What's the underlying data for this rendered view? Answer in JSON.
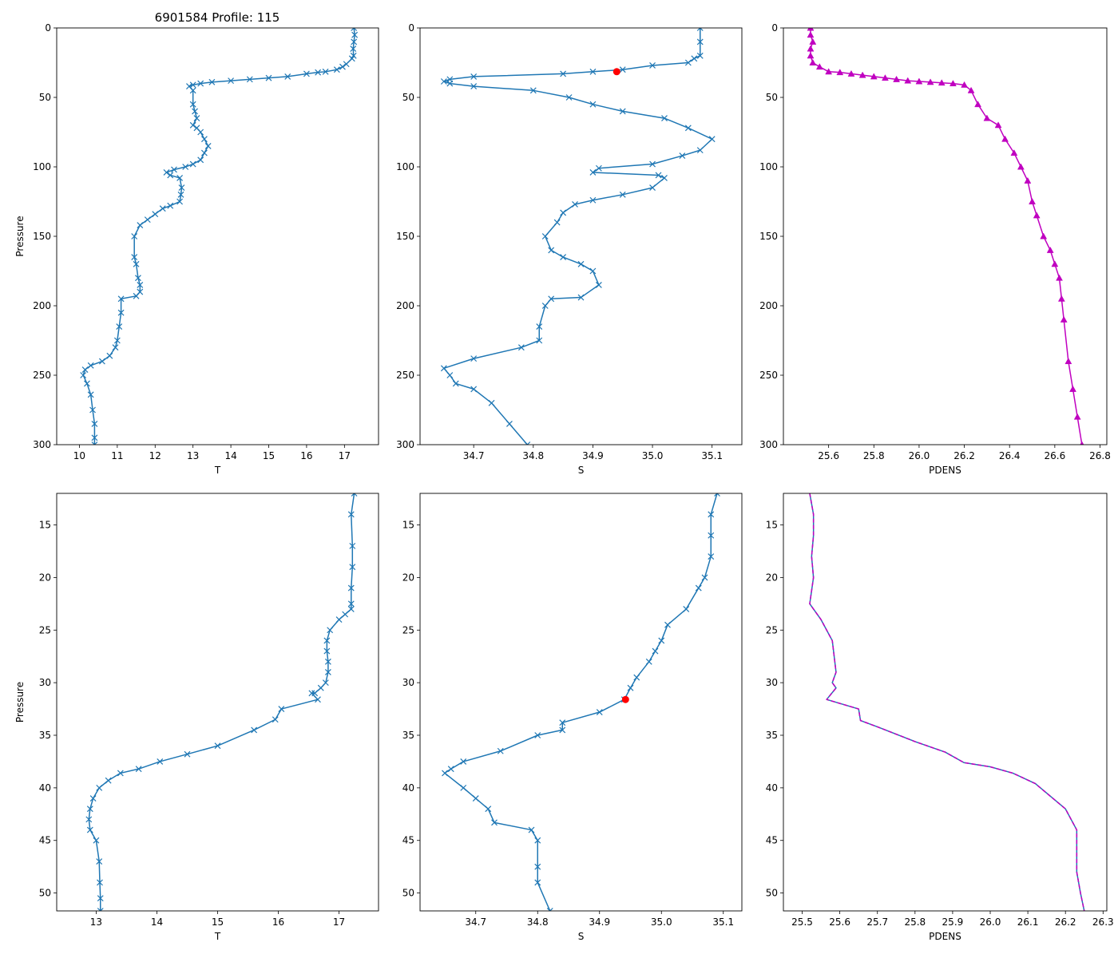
{
  "figure_title": "6901584 Profile: 115",
  "chart_data": [
    {
      "type": "line",
      "id": "top-T",
      "title": "6901584 Profile: 115",
      "xlabel": "T",
      "ylabel": "Pressure",
      "xlim": [
        9.4,
        17.9
      ],
      "ylim": [
        300,
        0
      ],
      "y_inverted": true,
      "xticks": [
        10,
        11,
        12,
        13,
        14,
        15,
        16,
        17
      ],
      "yticks": [
        0,
        50,
        100,
        150,
        200,
        250,
        300
      ],
      "series": [
        {
          "name": "T",
          "color": "#1f77b4",
          "marker": "x",
          "marker_color": "#1f77b4",
          "markevery": 1,
          "x": [
            17.25,
            17.27,
            17.25,
            17.23,
            17.24,
            17.2,
            17.05,
            16.95,
            16.8,
            16.5,
            16.3,
            16.0,
            15.5,
            15.0,
            14.5,
            14.0,
            13.5,
            13.2,
            13.0,
            12.9,
            13.0,
            13.0,
            13.05,
            13.1,
            13.0,
            13.1,
            13.2,
            13.3,
            13.4,
            13.3,
            13.2,
            13.0,
            12.8,
            12.5,
            12.3,
            12.4,
            12.65,
            12.7,
            12.68,
            12.65,
            12.4,
            12.2,
            12.0,
            11.8,
            11.6,
            11.45,
            11.45,
            11.5,
            11.55,
            11.6,
            11.6,
            11.5,
            11.1,
            11.1,
            11.05,
            11.0,
            10.95,
            10.8,
            10.6,
            10.3,
            10.15,
            10.1,
            10.2,
            10.3,
            10.35,
            10.4,
            10.4,
            10.4
          ],
          "y": [
            0,
            5,
            10,
            15,
            20,
            22,
            26,
            28,
            30,
            31.5,
            32,
            33,
            35,
            36,
            37,
            38,
            39,
            40,
            41,
            42,
            45,
            55,
            60,
            65,
            70,
            72,
            75,
            80,
            85,
            90,
            95,
            98,
            100,
            102,
            104,
            106,
            108,
            115,
            120,
            125,
            128,
            130,
            134,
            138,
            142,
            150,
            165,
            170,
            180,
            185,
            190,
            193,
            195,
            205,
            215,
            225,
            230,
            236,
            240,
            243,
            246,
            250,
            256,
            264,
            275,
            285,
            295,
            300
          ]
        }
      ]
    },
    {
      "type": "line",
      "id": "top-S",
      "title": "",
      "xlabel": "S",
      "ylabel": "",
      "xlim": [
        34.61,
        35.15
      ],
      "ylim": [
        300,
        0
      ],
      "y_inverted": true,
      "xticks": [
        34.7,
        34.8,
        34.9,
        35.0,
        35.1
      ],
      "yticks": [
        0,
        50,
        100,
        150,
        200,
        250,
        300
      ],
      "highlight": {
        "x": 34.94,
        "y": 31.5,
        "color": "#ff0000"
      },
      "series": [
        {
          "name": "S",
          "color": "#1f77b4",
          "marker": "x",
          "marker_color": "#1f77b4",
          "markevery": 1,
          "x": [
            35.08,
            35.08,
            35.08,
            35.07,
            35.06,
            35.0,
            34.95,
            34.9,
            34.85,
            34.7,
            34.66,
            34.65,
            34.66,
            34.7,
            34.8,
            34.86,
            34.9,
            34.95,
            35.02,
            35.06,
            35.1,
            35.08,
            35.05,
            35.0,
            34.91,
            34.9,
            35.01,
            35.02,
            35.0,
            34.95,
            34.9,
            34.87,
            34.85,
            34.84,
            34.82,
            34.83,
            34.85,
            34.88,
            34.9,
            34.91,
            34.88,
            34.83,
            34.82,
            34.81,
            34.81,
            34.78,
            34.7,
            34.65,
            34.66,
            34.67,
            34.7,
            34.73,
            34.76,
            34.79
          ],
          "y": [
            0,
            10,
            20,
            22,
            25,
            27,
            30,
            31.5,
            33,
            35,
            37,
            38.5,
            40,
            42,
            45,
            50,
            55,
            60,
            65,
            72,
            80,
            88,
            92,
            98,
            101,
            104,
            106,
            108,
            115,
            120,
            124,
            127,
            133,
            140,
            150,
            160,
            165,
            170,
            175,
            185,
            194,
            195,
            200,
            215,
            225,
            230,
            238,
            245,
            250,
            256,
            260,
            270,
            285,
            300
          ]
        }
      ]
    },
    {
      "type": "line",
      "id": "top-PDENS",
      "title": "",
      "xlabel": "PDENS",
      "ylabel": "",
      "xlim": [
        25.4,
        26.83
      ],
      "ylim": [
        300,
        0
      ],
      "y_inverted": true,
      "xticks": [
        25.6,
        25.8,
        26.0,
        26.2,
        26.4,
        26.6,
        26.8
      ],
      "yticks": [
        0,
        50,
        100,
        150,
        200,
        250,
        300
      ],
      "series": [
        {
          "name": "PDENS",
          "color": "#c000c0",
          "marker": "^",
          "marker_color": "#c000c0",
          "markevery": 1,
          "x": [
            25.52,
            25.52,
            25.53,
            25.52,
            25.52,
            25.53,
            25.56,
            25.6,
            25.65,
            25.7,
            25.75,
            25.8,
            25.85,
            25.9,
            25.95,
            26.0,
            26.05,
            26.1,
            26.15,
            26.2,
            26.23,
            26.26,
            26.3,
            26.35,
            26.38,
            26.42,
            26.45,
            26.48,
            26.5,
            26.52,
            26.55,
            26.58,
            26.6,
            26.62,
            26.63,
            26.64,
            26.66,
            26.68,
            26.7,
            26.72
          ],
          "y": [
            0,
            5,
            10,
            15,
            20,
            25,
            28,
            31.5,
            32,
            33,
            34,
            35,
            36,
            37,
            38,
            38.5,
            39,
            39.5,
            40,
            41,
            45,
            55,
            65,
            70,
            80,
            90,
            100,
            110,
            125,
            135,
            150,
            160,
            170,
            180,
            195,
            210,
            240,
            260,
            280,
            300
          ]
        }
      ]
    },
    {
      "type": "line",
      "id": "bottom-T",
      "title": "",
      "xlabel": "T",
      "ylabel": "Pressure",
      "xlim": [
        12.35,
        17.65
      ],
      "ylim": [
        51.7,
        12
      ],
      "y_inverted": true,
      "xticks": [
        13,
        14,
        15,
        16,
        17
      ],
      "yticks": [
        15,
        20,
        25,
        30,
        35,
        40,
        45,
        50
      ],
      "series": [
        {
          "name": "T",
          "color": "#1f77b4",
          "marker": "x",
          "marker_color": "#1f77b4",
          "markevery": 1,
          "x": [
            17.25,
            17.2,
            17.22,
            17.22,
            17.2,
            17.2,
            17.2,
            17.1,
            17.0,
            16.85,
            16.8,
            16.8,
            16.82,
            16.82,
            16.78,
            16.7,
            16.6,
            16.55,
            16.65,
            16.05,
            15.95,
            15.6,
            15.0,
            14.5,
            14.05,
            13.7,
            13.4,
            13.2,
            13.05,
            12.95,
            12.9,
            12.88,
            12.9,
            13.0,
            13.05,
            13.06,
            13.07,
            13.07
          ],
          "y": [
            12,
            14,
            17,
            19,
            21,
            22.5,
            23,
            23.5,
            24,
            25,
            26,
            27,
            28,
            29,
            30,
            30.5,
            31,
            31,
            31.6,
            32.5,
            33.5,
            34.5,
            36,
            36.8,
            37.5,
            38.2,
            38.6,
            39.3,
            40,
            41,
            42,
            43,
            44,
            45,
            47,
            49,
            50.5,
            51.7
          ]
        }
      ]
    },
    {
      "type": "line",
      "id": "bottom-S",
      "title": "",
      "xlabel": "S",
      "ylabel": "",
      "xlim": [
        34.61,
        35.13
      ],
      "ylim": [
        51.7,
        12
      ],
      "y_inverted": true,
      "xticks": [
        34.7,
        34.8,
        34.9,
        35.0,
        35.1
      ],
      "yticks": [
        15,
        20,
        25,
        30,
        35,
        40,
        45,
        50
      ],
      "highlight": {
        "x": 34.942,
        "y": 31.6,
        "color": "#ff0000"
      },
      "series": [
        {
          "name": "S",
          "color": "#1f77b4",
          "marker": "x",
          "marker_color": "#1f77b4",
          "markevery": 1,
          "x": [
            35.09,
            35.08,
            35.08,
            35.08,
            35.07,
            35.06,
            35.04,
            35.01,
            35.0,
            34.99,
            34.98,
            34.96,
            34.95,
            34.94,
            34.9,
            34.84,
            34.84,
            34.8,
            34.74,
            34.68,
            34.66,
            34.65,
            34.68,
            34.7,
            34.72,
            34.73,
            34.79,
            34.8,
            34.8,
            34.8,
            34.82
          ],
          "y": [
            12,
            14,
            16,
            18,
            20,
            21,
            23,
            24.5,
            26,
            27,
            28,
            29.5,
            30.5,
            31.6,
            32.8,
            33.8,
            34.5,
            35,
            36.5,
            37.5,
            38.2,
            38.6,
            40,
            41,
            42,
            43.3,
            44,
            45,
            47.5,
            49,
            51.7
          ]
        }
      ]
    },
    {
      "type": "line",
      "id": "bottom-PDENS",
      "title": "",
      "xlabel": "PDENS",
      "ylabel": "",
      "xlim": [
        25.45,
        26.31
      ],
      "ylim": [
        51.7,
        12
      ],
      "y_inverted": true,
      "xticks": [
        25.5,
        25.6,
        25.7,
        25.8,
        25.9,
        26.0,
        26.1,
        26.2,
        26.3
      ],
      "yticks": [
        15,
        20,
        25,
        30,
        35,
        40,
        45,
        50
      ],
      "series": [
        {
          "name": "PDENS",
          "color": "#1f77b4",
          "marker": "",
          "marker_color": "",
          "markevery": 0,
          "x": [
            25.52,
            25.53,
            25.53,
            25.525,
            25.53,
            25.52,
            25.55,
            25.58,
            25.59,
            25.58,
            25.59,
            25.565,
            25.65,
            25.655,
            25.7,
            25.8,
            25.88,
            25.93,
            26.0,
            26.06,
            26.12,
            26.2,
            26.23,
            26.23,
            26.24,
            26.25
          ],
          "y": [
            12,
            14,
            16,
            18,
            20,
            22.5,
            24,
            26,
            29,
            30,
            30.5,
            31.6,
            32.5,
            33.6,
            34.2,
            35.6,
            36.6,
            37.6,
            38,
            38.6,
            39.6,
            42,
            44,
            48,
            50,
            51.7
          ]
        },
        {
          "name": "PDENS-dashed",
          "color": "#c000c0",
          "marker": "",
          "marker_color": "",
          "markevery": 0,
          "dashed": true,
          "x": [
            25.52,
            25.53,
            25.53,
            25.525,
            25.53,
            25.52,
            25.55,
            25.58,
            25.59,
            25.58,
            25.59,
            25.565,
            25.65,
            25.655,
            25.7,
            25.8,
            25.88,
            25.93,
            26.0,
            26.06,
            26.12,
            26.2,
            26.23,
            26.23,
            26.24,
            26.25
          ],
          "y": [
            12,
            14,
            16,
            18,
            20,
            22.5,
            24,
            26,
            29,
            30,
            30.5,
            31.6,
            32.5,
            33.6,
            34.2,
            35.6,
            36.6,
            37.6,
            38,
            38.6,
            39.6,
            42,
            44,
            48,
            50,
            51.7
          ]
        }
      ]
    }
  ]
}
